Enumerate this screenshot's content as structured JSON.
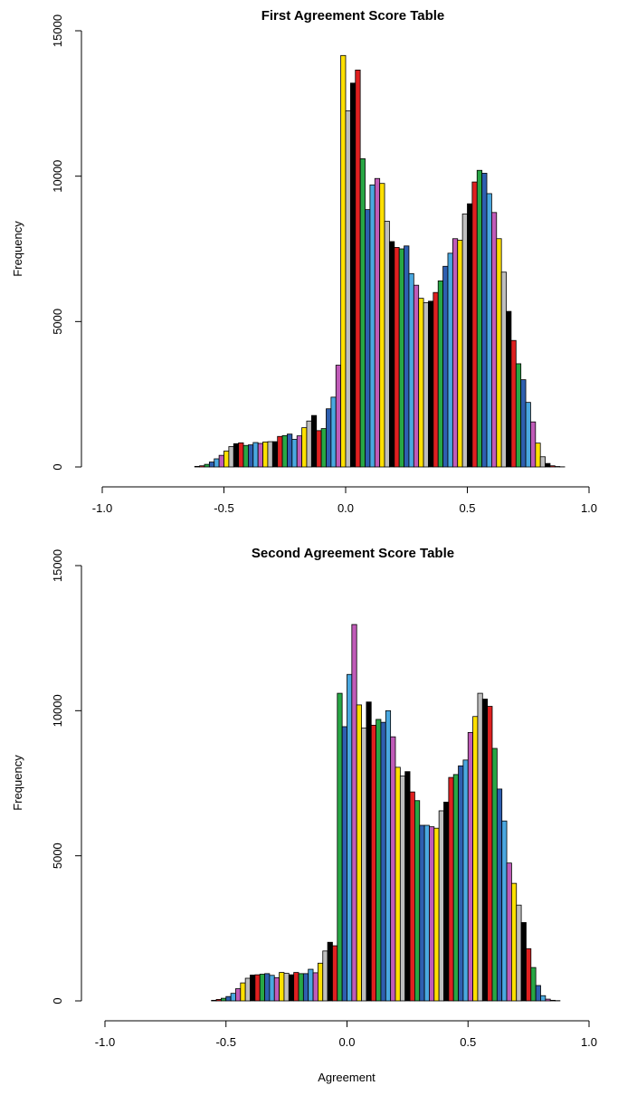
{
  "chart_data": [
    {
      "type": "bar",
      "title": "First Agreement Score Table",
      "xlabel": "",
      "ylabel": "Frequency",
      "xlim": [
        -1.0,
        1.0
      ],
      "ylim": [
        0,
        15000
      ],
      "xticks": [
        "-1.0",
        "-0.5",
        "0.0",
        "0.5",
        "1.0"
      ],
      "yticks": [
        "0",
        "5000",
        "10000",
        "15000"
      ],
      "bin_width": 0.02,
      "bin_start": -0.62,
      "values": [
        20,
        40,
        90,
        170,
        280,
        400,
        550,
        700,
        800,
        830,
        740,
        760,
        840,
        810,
        860,
        870,
        870,
        1050,
        1080,
        1130,
        950,
        1070,
        1350,
        1580,
        1770,
        1250,
        1320,
        2000,
        2400,
        3500,
        14150,
        12250,
        13200,
        13650,
        10600,
        8850,
        9700,
        9920,
        9750,
        8450,
        7750,
        7550,
        7500,
        7600,
        6650,
        6250,
        5800,
        5650,
        5700,
        6000,
        6400,
        6900,
        7350,
        7850,
        7800,
        8700,
        9050,
        9800,
        10200,
        10100,
        9400,
        8750,
        7850,
        6700,
        5350,
        4350,
        3550,
        3000,
        2220,
        1550,
        820,
        350,
        120,
        40,
        15,
        5
      ]
    },
    {
      "type": "bar",
      "title": "Second Agreement Score Table",
      "xlabel": "Agreement",
      "ylabel": "Frequency",
      "xlim": [
        -1.0,
        1.0
      ],
      "ylim": [
        0,
        15000
      ],
      "xticks": [
        "-1.0",
        "-0.5",
        "0.0",
        "0.5",
        "1.0"
      ],
      "yticks": [
        "0",
        "5000",
        "10000",
        "15000"
      ],
      "bin_width": 0.02,
      "bin_start": -0.56,
      "values": [
        20,
        50,
        90,
        150,
        260,
        420,
        620,
        780,
        890,
        900,
        920,
        940,
        880,
        800,
        980,
        950,
        900,
        980,
        940,
        940,
        1090,
        970,
        1300,
        1720,
        2020,
        1900,
        10600,
        9450,
        11250,
        12970,
        10200,
        9400,
        10300,
        9500,
        9700,
        9600,
        10000,
        9100,
        8050,
        7750,
        7900,
        7200,
        6900,
        6050,
        6050,
        6000,
        5950,
        6550,
        6850,
        7700,
        7800,
        8100,
        8300,
        9250,
        9800,
        10600,
        10400,
        10150,
        8700,
        7300,
        6200,
        4750,
        4050,
        3300,
        2700,
        1800,
        1150,
        530,
        180,
        60,
        20,
        8
      ]
    }
  ],
  "palette": [
    "#000000",
    "#DF2020",
    "#28A745",
    "#2E5FB0",
    "#4AA8E0",
    "#C05BB8",
    "#FFE000",
    "#BEBEBE"
  ]
}
